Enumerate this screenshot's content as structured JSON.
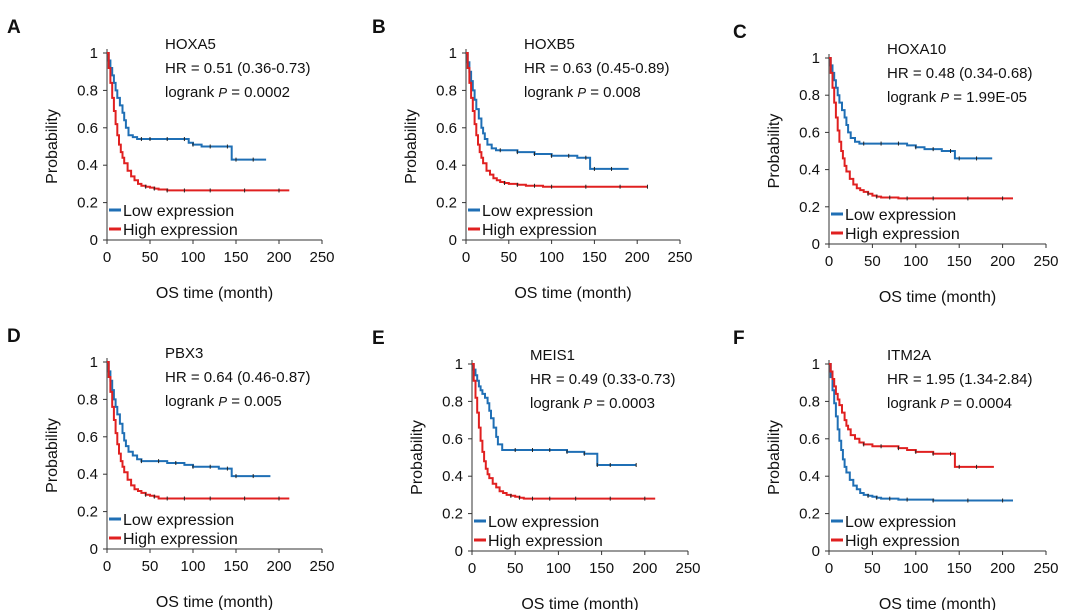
{
  "chart_data": [
    {
      "panel": "A",
      "type": "line",
      "gene": "HOXA5",
      "hr": "HR = 0.51 (0.36-0.73)",
      "p": "0.0002",
      "xlabel": "OS time (month)",
      "ylabel": "Probability",
      "xlim": [
        0,
        250
      ],
      "ylim": [
        0,
        1
      ],
      "xticks": [
        "0",
        "50",
        "100",
        "150",
        "200",
        "250"
      ],
      "yticks": [
        "0",
        "0.2",
        "0.4",
        "0.6",
        "0.8",
        "1"
      ],
      "legend": [
        "Low expression",
        "High expression"
      ],
      "series": [
        {
          "name": "Low expression",
          "color": "#1f6fb5",
          "x": [
            0,
            2,
            4,
            6,
            8,
            10,
            12,
            15,
            18,
            20,
            22,
            25,
            30,
            35,
            40,
            45,
            50,
            60,
            70,
            80,
            90,
            95,
            100,
            110,
            120,
            130,
            140,
            145,
            150,
            160,
            170,
            185
          ],
          "y": [
            1,
            0.96,
            0.92,
            0.88,
            0.84,
            0.8,
            0.76,
            0.72,
            0.68,
            0.64,
            0.6,
            0.56,
            0.55,
            0.54,
            0.54,
            0.54,
            0.54,
            0.54,
            0.54,
            0.54,
            0.54,
            0.52,
            0.51,
            0.5,
            0.5,
            0.5,
            0.5,
            0.43,
            0.43,
            0.43,
            0.43,
            0.43
          ]
        },
        {
          "name": "High expression",
          "color": "#e02020",
          "x": [
            0,
            2,
            4,
            6,
            8,
            10,
            12,
            14,
            16,
            18,
            20,
            24,
            28,
            32,
            36,
            40,
            45,
            50,
            55,
            60,
            70,
            80,
            90,
            100,
            120,
            140,
            160,
            180,
            200,
            212
          ],
          "y": [
            1,
            0.92,
            0.84,
            0.76,
            0.69,
            0.62,
            0.56,
            0.51,
            0.47,
            0.44,
            0.41,
            0.37,
            0.34,
            0.32,
            0.3,
            0.29,
            0.285,
            0.28,
            0.275,
            0.27,
            0.265,
            0.265,
            0.265,
            0.265,
            0.265,
            0.265,
            0.265,
            0.265,
            0.265,
            0.265
          ]
        }
      ]
    },
    {
      "panel": "B",
      "type": "line",
      "gene": "HOXB5",
      "hr": "HR = 0.63 (0.45-0.89)",
      "p": "0.008",
      "xlabel": "OS time (month)",
      "ylabel": "Probability",
      "xlim": [
        0,
        250
      ],
      "ylim": [
        0,
        1
      ],
      "xticks": [
        "0",
        "50",
        "100",
        "150",
        "200",
        "250"
      ],
      "yticks": [
        "0",
        "0.2",
        "0.4",
        "0.6",
        "0.8",
        "1"
      ],
      "legend": [
        "Low expression",
        "High expression"
      ],
      "series": [
        {
          "name": "Low expression",
          "color": "#1f6fb5",
          "x": [
            0,
            2,
            4,
            6,
            8,
            10,
            12,
            15,
            18,
            20,
            22,
            25,
            30,
            35,
            40,
            50,
            60,
            70,
            80,
            90,
            100,
            110,
            120,
            130,
            140,
            145,
            150,
            160,
            170,
            190
          ],
          "y": [
            1,
            0.95,
            0.9,
            0.85,
            0.8,
            0.75,
            0.7,
            0.65,
            0.6,
            0.57,
            0.54,
            0.51,
            0.49,
            0.48,
            0.48,
            0.48,
            0.47,
            0.47,
            0.46,
            0.46,
            0.45,
            0.45,
            0.45,
            0.44,
            0.44,
            0.38,
            0.38,
            0.38,
            0.38,
            0.38
          ]
        },
        {
          "name": "High expression",
          "color": "#e02020",
          "x": [
            0,
            2,
            4,
            6,
            8,
            10,
            12,
            14,
            16,
            18,
            20,
            24,
            28,
            32,
            36,
            40,
            45,
            50,
            60,
            70,
            80,
            90,
            100,
            120,
            140,
            160,
            180,
            200,
            212
          ],
          "y": [
            1,
            0.92,
            0.84,
            0.76,
            0.69,
            0.62,
            0.56,
            0.51,
            0.47,
            0.44,
            0.41,
            0.37,
            0.35,
            0.33,
            0.32,
            0.31,
            0.305,
            0.3,
            0.295,
            0.29,
            0.29,
            0.285,
            0.285,
            0.285,
            0.285,
            0.285,
            0.285,
            0.285,
            0.285
          ]
        }
      ]
    },
    {
      "panel": "C",
      "type": "line",
      "gene": "HOXA10",
      "hr": "HR = 0.48 (0.34-0.68)",
      "p": "1.99E-05",
      "xlabel": "OS time (month)",
      "ylabel": "Probability",
      "xlim": [
        0,
        250
      ],
      "ylim": [
        0,
        1
      ],
      "xticks": [
        "0",
        "50",
        "100",
        "150",
        "200",
        "250"
      ],
      "yticks": [
        "0",
        "0.2",
        "0.4",
        "0.6",
        "0.8",
        "1"
      ],
      "legend": [
        "Low expression",
        "High expression"
      ],
      "series": [
        {
          "name": "Low expression",
          "color": "#1f6fb5",
          "x": [
            0,
            2,
            4,
            6,
            8,
            10,
            12,
            15,
            18,
            20,
            22,
            25,
            30,
            35,
            40,
            50,
            60,
            70,
            80,
            90,
            100,
            110,
            120,
            130,
            140,
            145,
            150,
            160,
            170,
            188
          ],
          "y": [
            1,
            0.96,
            0.92,
            0.88,
            0.84,
            0.8,
            0.76,
            0.72,
            0.68,
            0.64,
            0.6,
            0.57,
            0.55,
            0.54,
            0.54,
            0.54,
            0.54,
            0.54,
            0.54,
            0.53,
            0.52,
            0.51,
            0.51,
            0.5,
            0.5,
            0.46,
            0.46,
            0.46,
            0.46,
            0.46
          ]
        },
        {
          "name": "High expression",
          "color": "#e02020",
          "x": [
            0,
            2,
            4,
            6,
            8,
            10,
            12,
            14,
            16,
            18,
            20,
            24,
            28,
            32,
            36,
            40,
            45,
            50,
            55,
            60,
            70,
            80,
            90,
            100,
            120,
            140,
            160,
            180,
            200,
            212
          ],
          "y": [
            1,
            0.92,
            0.84,
            0.76,
            0.68,
            0.61,
            0.55,
            0.5,
            0.46,
            0.42,
            0.39,
            0.35,
            0.32,
            0.3,
            0.29,
            0.28,
            0.27,
            0.26,
            0.255,
            0.25,
            0.25,
            0.245,
            0.245,
            0.245,
            0.245,
            0.245,
            0.245,
            0.245,
            0.245,
            0.245
          ]
        }
      ]
    },
    {
      "panel": "D",
      "type": "line",
      "gene": "PBX3",
      "hr": "HR = 0.64 (0.46-0.87)",
      "p": "0.005",
      "xlabel": "OS time (month)",
      "ylabel": "Probability",
      "xlim": [
        0,
        250
      ],
      "ylim": [
        0,
        1
      ],
      "xticks": [
        "0",
        "50",
        "100",
        "150",
        "200",
        "250"
      ],
      "yticks": [
        "0",
        "0.2",
        "0.4",
        "0.6",
        "0.8",
        "1"
      ],
      "legend": [
        "Low expression",
        "High expression"
      ],
      "series": [
        {
          "name": "Low expression",
          "color": "#1f6fb5",
          "x": [
            0,
            2,
            4,
            6,
            8,
            10,
            12,
            15,
            18,
            20,
            22,
            25,
            30,
            35,
            40,
            50,
            60,
            70,
            80,
            90,
            100,
            110,
            120,
            130,
            140,
            145,
            150,
            160,
            170,
            190
          ],
          "y": [
            1,
            0.95,
            0.9,
            0.85,
            0.8,
            0.76,
            0.72,
            0.67,
            0.62,
            0.58,
            0.55,
            0.52,
            0.5,
            0.48,
            0.47,
            0.47,
            0.47,
            0.46,
            0.46,
            0.45,
            0.44,
            0.44,
            0.44,
            0.43,
            0.43,
            0.39,
            0.39,
            0.39,
            0.39,
            0.39
          ]
        },
        {
          "name": "High expression",
          "color": "#e02020",
          "x": [
            0,
            2,
            4,
            6,
            8,
            10,
            12,
            14,
            16,
            18,
            20,
            24,
            28,
            32,
            36,
            40,
            45,
            50,
            55,
            60,
            70,
            80,
            90,
            100,
            120,
            140,
            160,
            180,
            200,
            212
          ],
          "y": [
            1,
            0.92,
            0.84,
            0.76,
            0.69,
            0.62,
            0.56,
            0.51,
            0.47,
            0.44,
            0.41,
            0.37,
            0.34,
            0.32,
            0.31,
            0.3,
            0.29,
            0.285,
            0.28,
            0.27,
            0.27,
            0.27,
            0.27,
            0.27,
            0.27,
            0.27,
            0.27,
            0.27,
            0.27,
            0.27
          ]
        }
      ]
    },
    {
      "panel": "E",
      "type": "line",
      "gene": "MEIS1",
      "hr": "HR = 0.49 (0.33-0.73)",
      "p": "0.0003",
      "xlabel": "OS time (month)",
      "ylabel": "Probability",
      "xlim": [
        0,
        250
      ],
      "ylim": [
        0,
        1
      ],
      "xticks": [
        "0",
        "50",
        "100",
        "150",
        "200",
        "250"
      ],
      "yticks": [
        "0",
        "0.2",
        "0.4",
        "0.6",
        "0.8",
        "1"
      ],
      "legend": [
        "Low expression",
        "High expression"
      ],
      "series": [
        {
          "name": "Low expression",
          "color": "#1f6fb5",
          "x": [
            0,
            2,
            4,
            6,
            8,
            10,
            12,
            15,
            18,
            20,
            22,
            25,
            28,
            30,
            35,
            40,
            50,
            60,
            70,
            80,
            90,
            100,
            110,
            120,
            130,
            140,
            145,
            150,
            160,
            170,
            190
          ],
          "y": [
            1,
            0.97,
            0.94,
            0.91,
            0.88,
            0.86,
            0.84,
            0.82,
            0.79,
            0.75,
            0.71,
            0.66,
            0.61,
            0.57,
            0.54,
            0.54,
            0.54,
            0.54,
            0.54,
            0.54,
            0.54,
            0.54,
            0.53,
            0.53,
            0.52,
            0.52,
            0.46,
            0.46,
            0.46,
            0.46,
            0.46
          ]
        },
        {
          "name": "High expression",
          "color": "#e02020",
          "x": [
            0,
            2,
            4,
            6,
            8,
            10,
            12,
            14,
            16,
            18,
            20,
            24,
            28,
            32,
            36,
            40,
            45,
            50,
            55,
            60,
            70,
            80,
            90,
            100,
            120,
            140,
            160,
            180,
            200,
            212
          ],
          "y": [
            1,
            0.91,
            0.82,
            0.74,
            0.66,
            0.59,
            0.53,
            0.48,
            0.44,
            0.41,
            0.39,
            0.36,
            0.34,
            0.32,
            0.31,
            0.3,
            0.295,
            0.29,
            0.285,
            0.28,
            0.28,
            0.28,
            0.28,
            0.28,
            0.28,
            0.28,
            0.28,
            0.28,
            0.28,
            0.28
          ]
        }
      ]
    },
    {
      "panel": "F",
      "type": "line",
      "gene": "ITM2A",
      "hr": "HR = 1.95 (1.34-2.84)",
      "p": "0.0004",
      "xlabel": "OS time (month)",
      "ylabel": "Probability",
      "xlim": [
        0,
        250
      ],
      "ylim": [
        0,
        1
      ],
      "xticks": [
        "0",
        "50",
        "100",
        "150",
        "200",
        "250"
      ],
      "yticks": [
        "0",
        "0.2",
        "0.4",
        "0.6",
        "0.8",
        "1"
      ],
      "legend": [
        "Low expression",
        "High expression"
      ],
      "series": [
        {
          "name": "Low expression",
          "color": "#1f6fb5",
          "x": [
            0,
            2,
            4,
            6,
            8,
            10,
            12,
            14,
            16,
            18,
            20,
            24,
            28,
            32,
            36,
            40,
            45,
            50,
            55,
            60,
            70,
            80,
            90,
            100,
            120,
            140,
            160,
            180,
            200,
            212
          ],
          "y": [
            1,
            0.93,
            0.86,
            0.79,
            0.72,
            0.65,
            0.59,
            0.54,
            0.49,
            0.45,
            0.42,
            0.38,
            0.35,
            0.33,
            0.31,
            0.3,
            0.295,
            0.29,
            0.285,
            0.28,
            0.28,
            0.275,
            0.275,
            0.275,
            0.27,
            0.27,
            0.27,
            0.27,
            0.27,
            0.27
          ]
        },
        {
          "name": "High expression",
          "color": "#e02020",
          "x": [
            0,
            2,
            4,
            6,
            8,
            10,
            12,
            15,
            18,
            20,
            22,
            25,
            30,
            35,
            40,
            50,
            60,
            70,
            80,
            90,
            100,
            110,
            120,
            130,
            140,
            145,
            150,
            160,
            170,
            190
          ],
          "y": [
            1,
            0.96,
            0.92,
            0.88,
            0.84,
            0.81,
            0.78,
            0.74,
            0.7,
            0.67,
            0.65,
            0.62,
            0.6,
            0.58,
            0.57,
            0.56,
            0.56,
            0.56,
            0.55,
            0.54,
            0.53,
            0.53,
            0.52,
            0.52,
            0.52,
            0.45,
            0.45,
            0.45,
            0.45,
            0.45
          ]
        }
      ]
    }
  ]
}
